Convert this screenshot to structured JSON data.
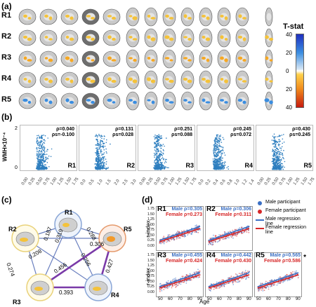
{
  "panel_a": {
    "letter": "(a)",
    "rows": [
      "R1",
      "R2",
      "R3",
      "R4",
      "R5"
    ],
    "colorbar": {
      "title": "T-stat",
      "ticks": [
        "40",
        "20",
        "0",
        "20",
        "40"
      ]
    }
  },
  "panel_b": {
    "letter": "(b)",
    "ylabel": "WMH×10⁻⁴",
    "panels": [
      {
        "label": "R1",
        "rho": "ρ=0.040",
        "rho_s": "ρs=-0.100"
      },
      {
        "label": "R2",
        "rho": "ρ=0.131",
        "rho_s": "ρs=0.028"
      },
      {
        "label": "R3",
        "rho": "ρ=0.251",
        "rho_s": "ρs=0.088"
      },
      {
        "label": "R4",
        "rho": "ρ=0.245",
        "rho_s": "ρs=0.072"
      },
      {
        "label": "R5",
        "rho": "ρ=0.430",
        "rho_s": "ρs=0.245"
      }
    ],
    "ytick_top": "2",
    "ytick_bottom": "0",
    "xticks_1": [
      "0.00",
      "0.25",
      "0.50",
      "0.75",
      "1.00",
      "1.25",
      "1.50",
      "1.75"
    ],
    "xticks_2": [
      "0.0",
      "0.5",
      "1.0",
      "1.5",
      "2.0",
      "2.5",
      "3.0"
    ],
    "xticks_3": [
      "0.00",
      "0.25",
      "0.50",
      "0.75",
      "1.00",
      "1.25",
      "1.50",
      "1.75"
    ],
    "xticks_4": [
      "0.0",
      "0.2",
      "0.4",
      "0.6",
      "0.8",
      "1.0",
      "1.2",
      "1.4"
    ],
    "xticks_5": [
      "0.00",
      "0.25",
      "0.50",
      "0.75",
      "1.00",
      "1.25",
      "1.50",
      "1.75"
    ]
  },
  "panel_c": {
    "letter": "(c)",
    "nodes": [
      "R1",
      "R2",
      "R5",
      "R3",
      "R4"
    ],
    "edges": [
      "0.187",
      "0.288",
      "0.319",
      "0.306",
      "0.208",
      "0.274",
      "0.456",
      "0.256",
      "0.427",
      "0.393"
    ]
  },
  "panel_d": {
    "letter": "(d)",
    "ylabel": "r-index",
    "xlabel": "Age",
    "yticks": [
      "1.75",
      "1.50",
      "1.25",
      "1.00",
      "0.75",
      "0.50",
      "0.25",
      "0.00"
    ],
    "xticks": [
      "50",
      "60",
      "70",
      "80",
      "90"
    ],
    "panels": [
      {
        "label": "R1",
        "male": "Male ρ=0.305",
        "female": "Female ρ=0.273",
        "star": ""
      },
      {
        "label": "R2",
        "male": "Male ρ=0.306",
        "female": "Female ρ=0.311",
        "star": ""
      },
      {
        "label": "R3",
        "male": "Male ρ=0.455",
        "female": "Female ρ=0.424",
        "star": "*"
      },
      {
        "label": "R4",
        "male": "Male ρ=0.442",
        "female": "Female ρ=0.430",
        "star": ""
      },
      {
        "label": "R5",
        "male": "Male ρ=0.565",
        "female": "Female ρ=0.586",
        "star": "*"
      }
    ],
    "legend": [
      "Male participant",
      "Female participant",
      "Male regression line",
      "Female regression line"
    ],
    "colors": {
      "male": "#3a6fc4",
      "female": "#d62728"
    }
  }
}
